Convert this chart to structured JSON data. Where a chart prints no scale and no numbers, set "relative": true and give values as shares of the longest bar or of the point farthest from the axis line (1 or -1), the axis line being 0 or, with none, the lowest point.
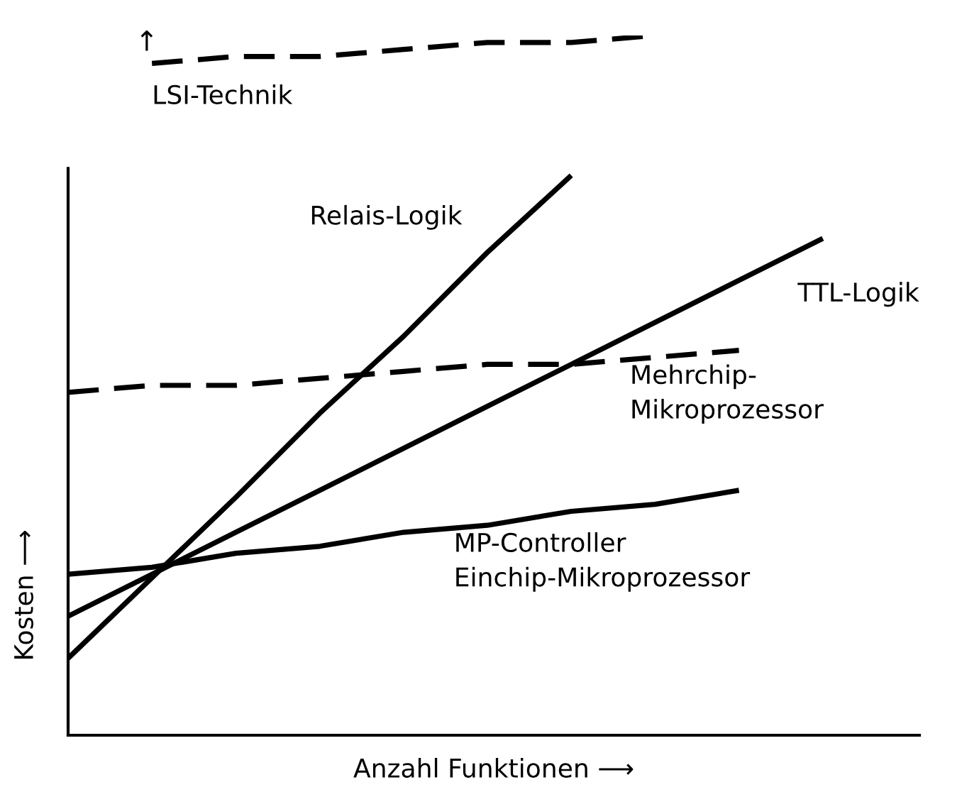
{
  "chart_data": {
    "type": "line",
    "relative": true,
    "xlabel": "Anzahl Funktionen ⟶",
    "ylabel": "Kosten ⟶",
    "legend": false,
    "marker": "none",
    "categories": [
      null,
      null,
      null,
      null,
      null,
      null,
      null,
      null,
      null,
      null,
      null
    ],
    "annotations": [
      "↑"
    ],
    "series": [
      {
        "name": "LSI-Technik",
        "color": "#000000",
        "line_style": "dashed",
        "values": [
          null,
          0.96,
          0.97,
          0.97,
          0.98,
          0.99,
          0.99,
          1.0,
          null,
          null,
          null
        ]
      },
      {
        "name": "Relais-Logik",
        "color": "#000000",
        "line_style": "solid",
        "values": [
          0.11,
          0.225,
          0.34,
          0.46,
          0.57,
          0.69,
          0.8,
          null,
          null,
          null,
          null
        ]
      },
      {
        "name": "TTL-Logik",
        "color": "#000000",
        "line_style": "solid",
        "values": [
          0.17,
          0.23,
          0.29,
          0.35,
          0.41,
          0.47,
          0.53,
          0.59,
          0.65,
          0.71,
          null
        ]
      },
      {
        "name": "Mehrchip-\nMikroprozessor",
        "color": "#000000",
        "line_style": "dashed",
        "values": [
          0.49,
          0.5,
          0.5,
          0.51,
          0.52,
          0.53,
          0.53,
          0.54,
          0.55,
          null,
          null
        ]
      },
      {
        "name": "MP-Controller\nEinchip-Mikroprozessor",
        "color": "#000000",
        "line_style": "solid",
        "values": [
          0.23,
          0.24,
          0.26,
          0.27,
          0.29,
          0.3,
          0.32,
          0.33,
          0.35,
          null,
          null
        ]
      }
    ]
  }
}
